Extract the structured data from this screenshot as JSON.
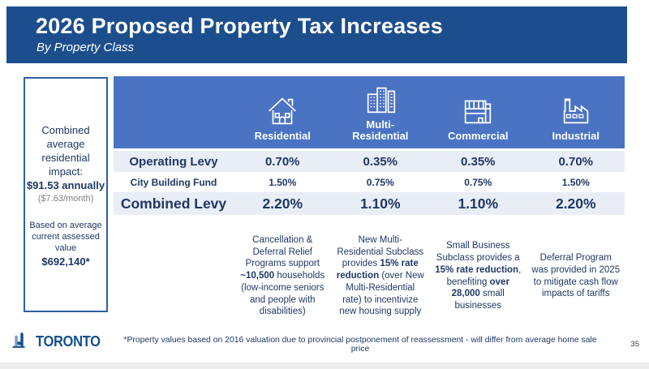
{
  "title": {
    "heading": "2026 Proposed Property Tax Increases",
    "subtitle": "By Property Class"
  },
  "sidebar": {
    "impact_label": "Combined average residential impact:",
    "impact_value": "$91.53 annually",
    "impact_monthly": "($7.63/month)",
    "based_on": "Based on average current assessed value",
    "assessed_value": "$692,140*"
  },
  "table": {
    "columns": [
      {
        "label": "Residential",
        "icon": "house-icon"
      },
      {
        "label": "Multi-Residential",
        "icon": "apartment-building-icon"
      },
      {
        "label": "Commercial",
        "icon": "commercial-building-icon"
      },
      {
        "label": "Industrial",
        "icon": "factory-icon"
      }
    ],
    "rows": [
      {
        "label": "Operating Levy",
        "values": [
          "0.70%",
          "0.35%",
          "0.35%",
          "0.70%"
        ]
      },
      {
        "label": "City Building Fund",
        "values": [
          "1.50%",
          "0.75%",
          "0.75%",
          "1.50%"
        ]
      },
      {
        "label": "Combined Levy",
        "values": [
          "2.20%",
          "1.10%",
          "1.10%",
          "2.20%"
        ]
      }
    ],
    "notes": [
      {
        "segments": [
          {
            "t": "Cancellation & Deferral Relief Programs support "
          },
          {
            "t": "~10,500",
            "b": true
          },
          {
            "t": " households (low-income seniors and people with disabilities)"
          }
        ]
      },
      {
        "segments": [
          {
            "t": "New Multi-Residential Subclass provides "
          },
          {
            "t": "15% rate reduction",
            "b": true
          },
          {
            "t": " (over New Multi-Residential rate) to incentivize new housing supply"
          }
        ]
      },
      {
        "segments": [
          {
            "t": "Small Business Subclass provides a "
          },
          {
            "t": "15% rate reduction",
            "b": true
          },
          {
            "t": ", benefiting "
          },
          {
            "t": "over 28,000",
            "b": true
          },
          {
            "t": " small businesses"
          }
        ]
      },
      {
        "segments": [
          {
            "t": "Deferral Program was provided in 2025 to mitigate cash flow impacts of tariffs"
          }
        ]
      }
    ]
  },
  "footer": {
    "logo_text": "Toronto",
    "footnote": "*Property values based on 2016 valuation due to provincial postponement of reassessment - will differ from average home sale price",
    "page_number": "35"
  },
  "colors": {
    "title_band": "#1c4e8e",
    "table_header": "#4a73c4",
    "row_shade": "#e9edf6",
    "navy_text": "#1f3864",
    "box_border": "#2e5fa3",
    "logo_blue": "#14518f"
  }
}
